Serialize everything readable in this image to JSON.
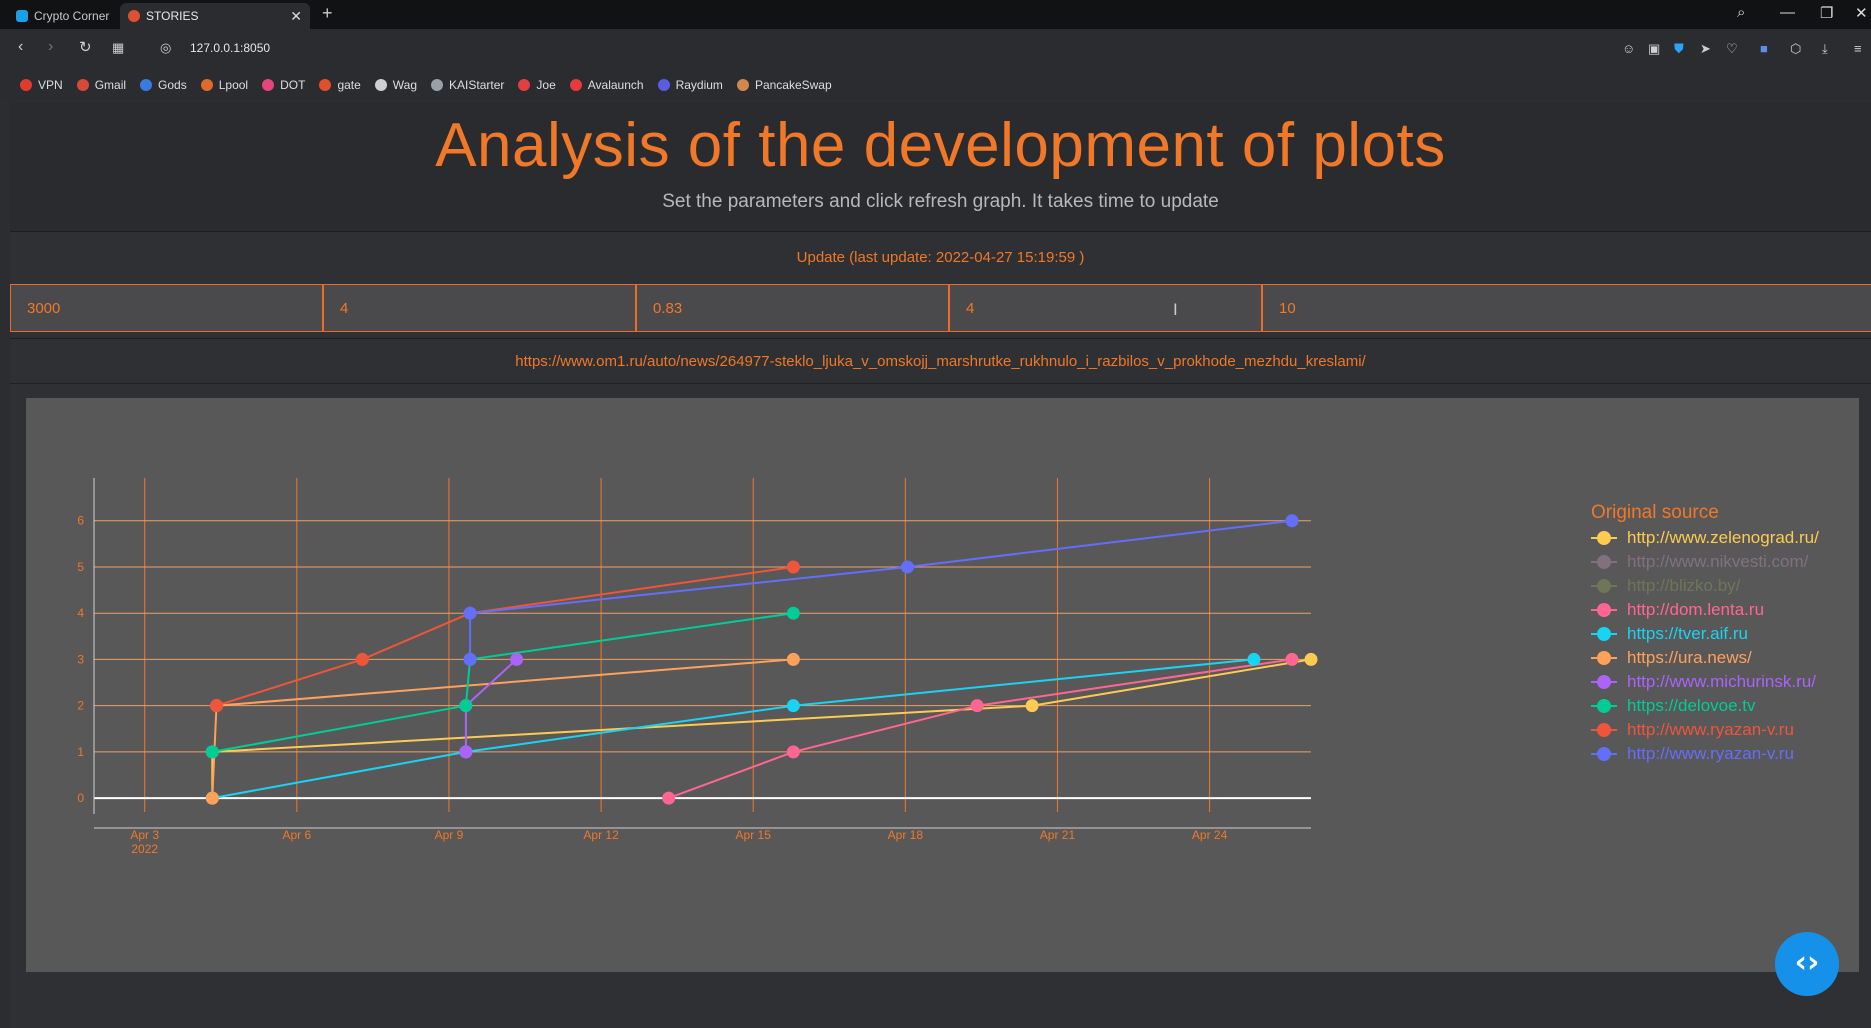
{
  "browser": {
    "tabs": [
      {
        "label": "Crypto Corner",
        "color": "#1aa0e8"
      },
      {
        "label": "STORIES",
        "color": "#e05030"
      }
    ],
    "url": "127.0.0.1:8050",
    "bookmarks": [
      {
        "label": "VPN",
        "color": "#e23a2c"
      },
      {
        "label": "Gmail",
        "color": "#d84a38"
      },
      {
        "label": "Gods",
        "color": "#3a7be0"
      },
      {
        "label": "Lpool",
        "color": "#e06a2a"
      },
      {
        "label": "DOT",
        "color": "#e6457a"
      },
      {
        "label": "gate",
        "color": "#e0502a"
      },
      {
        "label": "Wag",
        "color": "#cfcfcf"
      },
      {
        "label": "KAIStarter",
        "color": "#9aa0a6"
      },
      {
        "label": "Joe",
        "color": "#e04040"
      },
      {
        "label": "Avalaunch",
        "color": "#e53b3b"
      },
      {
        "label": "Raydium",
        "color": "#5a5de0"
      },
      {
        "label": "PancakeSwap",
        "color": "#d1884f"
      }
    ]
  },
  "header": {
    "title": "Analysis of the development of plots",
    "subtitle": "Set the parameters and click refresh graph. It takes time to update"
  },
  "controls": {
    "update_label": "Update (last update: 2022-04-27 15:19:59 )",
    "inputs": [
      "3000",
      "4",
      "0.83",
      "4",
      "10"
    ]
  },
  "story_url": "https://www.om1.ru/auto/news/264977-steklo_ljuka_v_omskojj_marshrutke_rukhnulo_i_razbilos_v_prokhode_mezhdu_kreslami/",
  "chart_data": {
    "type": "line",
    "x_axis": {
      "type": "date",
      "range": [
        "2022-04-02",
        "2022-04-26"
      ],
      "tick_labels": [
        "Apr 3\n2022",
        "Apr 6",
        "Apr 9",
        "Apr 12",
        "Apr 15",
        "Apr 18",
        "Apr 21",
        "Apr 24"
      ],
      "tick_values": [
        "2022-04-03",
        "2022-04-06",
        "2022-04-09",
        "2022-04-12",
        "2022-04-15",
        "2022-04-18",
        "2022-04-21",
        "2022-04-24"
      ]
    },
    "y_axis": {
      "range": [
        -0.3,
        6.6
      ],
      "tick_values": [
        0,
        1,
        2,
        3,
        4,
        5,
        6
      ]
    },
    "grid": true,
    "legend_title": "Original source",
    "legend_position": "right",
    "series": [
      {
        "name": "http://www.zelenograd.ru/",
        "color": "#fecb52",
        "visible": true,
        "points": [
          [
            "2022-04-04 08:00",
            0
          ],
          [
            "2022-04-04 08:00",
            1
          ],
          [
            "2022-04-20 12:00",
            2
          ],
          [
            "2022-04-26 00:00",
            3
          ]
        ]
      },
      {
        "name": "http://www.nikvesti.com/",
        "color": "#b68fb0",
        "visible": false,
        "points": []
      },
      {
        "name": "http://blizko.by/",
        "color": "#8a9a5b",
        "visible": false,
        "points": []
      },
      {
        "name": "http://dom.lenta.ru",
        "color": "#ff6692",
        "visible": true,
        "points": [
          [
            "2022-04-13 08:00",
            0
          ],
          [
            "2022-04-15 19:00",
            1
          ],
          [
            "2022-04-19 10:00",
            2
          ],
          [
            "2022-04-25 15:00",
            3
          ]
        ]
      },
      {
        "name": "https://tver.aif.ru",
        "color": "#19d3f3",
        "visible": true,
        "points": [
          [
            "2022-04-04 08:00",
            0
          ],
          [
            "2022-04-09 08:00",
            1
          ],
          [
            "2022-04-15 19:00",
            2
          ],
          [
            "2022-04-24 21:00",
            3
          ]
        ]
      },
      {
        "name": "https://ura.news/",
        "color": "#ffa15a",
        "visible": true,
        "points": [
          [
            "2022-04-04 08:00",
            0
          ],
          [
            "2022-04-04 10:00",
            2
          ],
          [
            "2022-04-15 19:00",
            3
          ]
        ]
      },
      {
        "name": "http://www.michurinsk.ru/",
        "color": "#ab63fa",
        "visible": true,
        "points": [
          [
            "2022-04-09 08:00",
            1
          ],
          [
            "2022-04-09 08:00",
            2
          ],
          [
            "2022-04-10 08:00",
            3
          ]
        ]
      },
      {
        "name": "https://delovoe.tv",
        "color": "#00cc96",
        "visible": true,
        "points": [
          [
            "2022-04-04 08:00",
            1
          ],
          [
            "2022-04-09 08:00",
            2
          ],
          [
            "2022-04-09 10:00",
            3
          ],
          [
            "2022-04-15 19:00",
            4
          ]
        ]
      },
      {
        "name": "http://www.ryazan-v.ru",
        "color": "#ef553b",
        "visible": true,
        "points": [
          [
            "2022-04-04 10:00",
            2
          ],
          [
            "2022-04-07 07:00",
            3
          ],
          [
            "2022-04-09 10:00",
            4
          ],
          [
            "2022-04-15 19:00",
            5
          ]
        ]
      },
      {
        "name": "http://www.ryazan-v.ru",
        "color": "#636efa",
        "visible": true,
        "points": [
          [
            "2022-04-09 10:00",
            3
          ],
          [
            "2022-04-09 10:00",
            4
          ],
          [
            "2022-04-18 01:00",
            5
          ],
          [
            "2022-04-25 15:00",
            6
          ]
        ]
      }
    ]
  }
}
